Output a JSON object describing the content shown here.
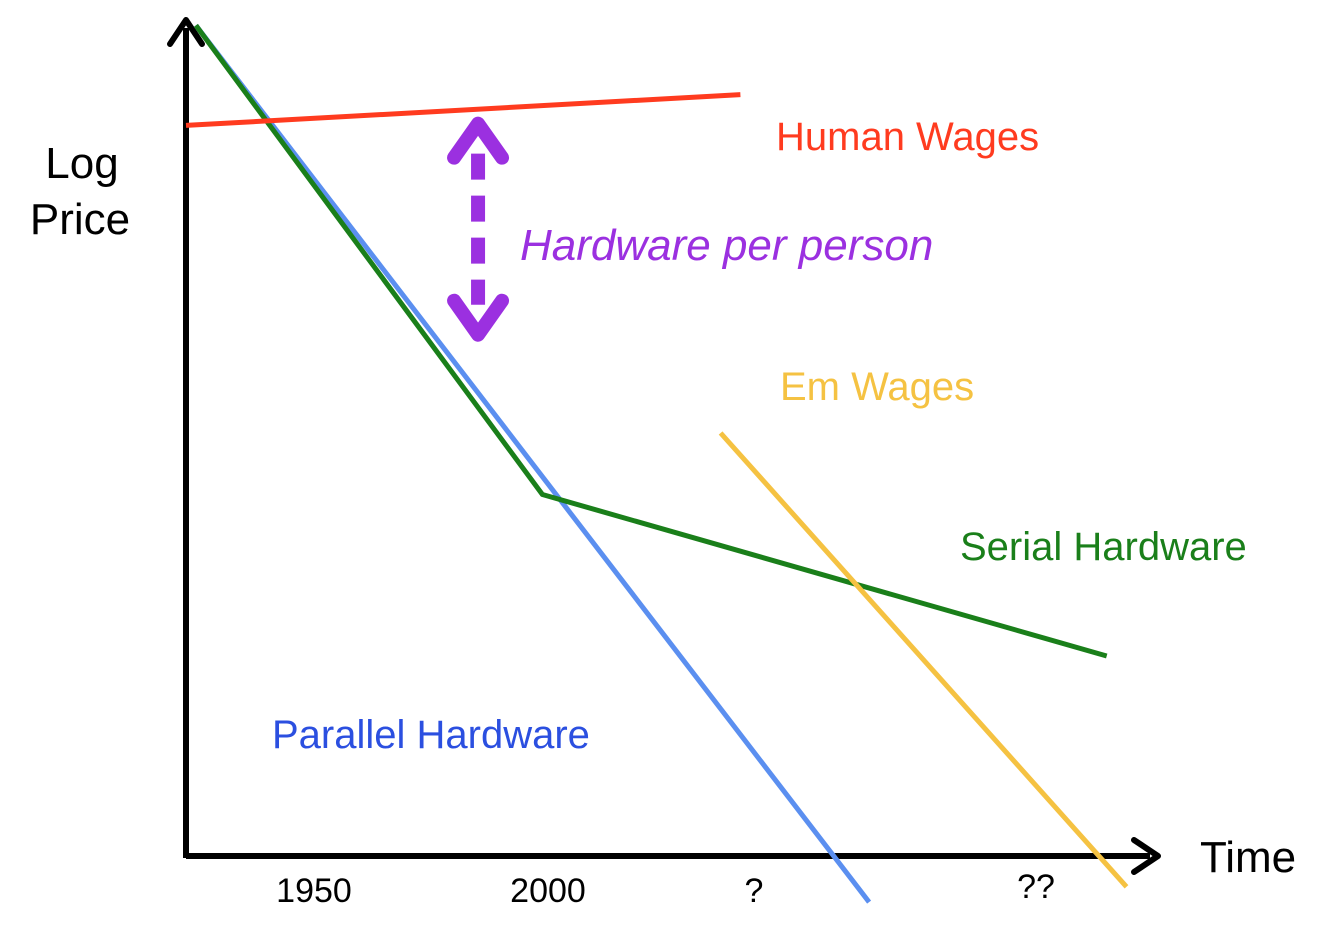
{
  "chart_data": {
    "type": "line",
    "title": "",
    "ylabel_lines": [
      "Log",
      "Price"
    ],
    "xlabel": "Time",
    "x_tick_labels": [
      "1950",
      "2000",
      "?",
      "??"
    ],
    "series": [
      {
        "name": "Human Wages",
        "color": "#ff3b1f",
        "points": [
          [
            0.0,
            9.5
          ],
          [
            5.6,
            9.9
          ]
        ]
      },
      {
        "name": "Parallel Hardware",
        "color": "#5b8ff0",
        "points": [
          [
            0.1,
            10.8
          ],
          [
            6.9,
            -0.6
          ]
        ]
      },
      {
        "name": "Serial Hardware",
        "color": "#1a7f1a",
        "points": [
          [
            0.1,
            10.8
          ],
          [
            3.6,
            4.7
          ],
          [
            9.3,
            2.6
          ]
        ]
      },
      {
        "name": "Em Wages",
        "color": "#f5c242",
        "points": [
          [
            5.4,
            5.5
          ],
          [
            9.5,
            -0.4
          ]
        ]
      }
    ],
    "annotation": {
      "text": "Hardware per person",
      "color": "#9b30e0",
      "x": 2.95,
      "y_from": 9.6,
      "y_to": 6.7
    },
    "axes": {
      "xlim": [
        0,
        10
      ],
      "ylim": [
        0,
        11
      ],
      "ticks_shown": false,
      "grid": false,
      "log_scale_y": true
    }
  }
}
